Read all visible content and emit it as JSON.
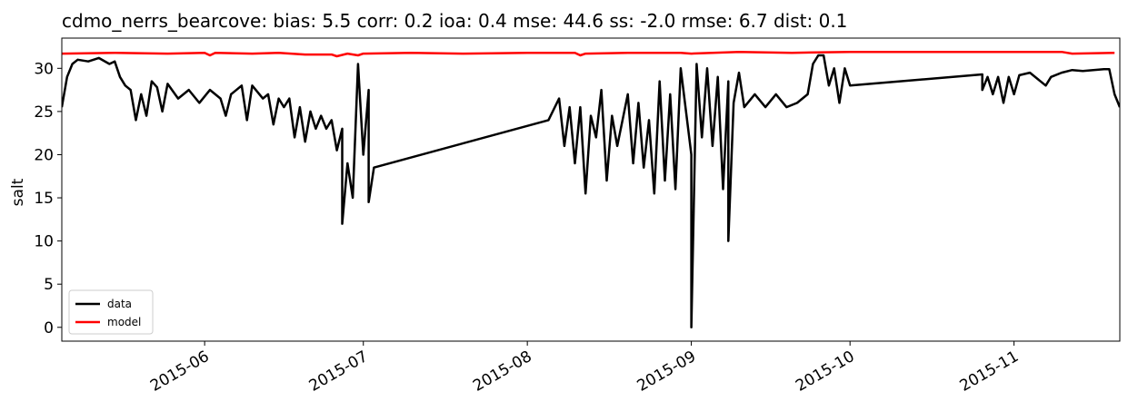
{
  "chart_data": {
    "type": "line",
    "title": "cdmo_nerrs_bearcove: bias: 5.5  corr: 0.2  ioa: 0.4  mse: 44.6  ss: -2.0  rmse: 6.7  dist: 0.1",
    "xlabel": "",
    "ylabel": "salt",
    "xlim": [
      "2015-05-05",
      "2015-11-21"
    ],
    "ylim": [
      -1.6,
      33.5
    ],
    "x_ticks": [
      "2015-06-01",
      "2015-07-01",
      "2015-08-01",
      "2015-09-01",
      "2015-10-01",
      "2015-11-01"
    ],
    "x_tick_labels": [
      "2015-06",
      "2015-07",
      "2015-08",
      "2015-09",
      "2015-10",
      "2015-11"
    ],
    "y_ticks": [
      0,
      5,
      10,
      15,
      20,
      25,
      30
    ],
    "y_tick_labels": [
      "0",
      "5",
      "10",
      "15",
      "20",
      "25",
      "30"
    ],
    "grid": false,
    "legend_position": "bottom-left",
    "legend": [
      "data",
      "model"
    ],
    "series": [
      {
        "name": "data",
        "color": "#000000",
        "points": [
          [
            "2015-05-05",
            25.5
          ],
          [
            "2015-05-06",
            29.0
          ],
          [
            "2015-05-07",
            30.5
          ],
          [
            "2015-05-08",
            31.0
          ],
          [
            "2015-05-10",
            30.8
          ],
          [
            "2015-05-12",
            31.2
          ],
          [
            "2015-05-14",
            30.5
          ],
          [
            "2015-05-15",
            30.8
          ],
          [
            "2015-05-16",
            29.0
          ],
          [
            "2015-05-17",
            28.0
          ],
          [
            "2015-05-18",
            27.5
          ],
          [
            "2015-05-19",
            24.0
          ],
          [
            "2015-05-20",
            27.0
          ],
          [
            "2015-05-21",
            24.5
          ],
          [
            "2015-05-22",
            28.5
          ],
          [
            "2015-05-23",
            27.8
          ],
          [
            "2015-05-24",
            25.0
          ],
          [
            "2015-05-25",
            28.2
          ],
          [
            "2015-05-27",
            26.5
          ],
          [
            "2015-05-29",
            27.5
          ],
          [
            "2015-05-31",
            26.0
          ],
          [
            "2015-06-02",
            27.5
          ],
          [
            "2015-06-04",
            26.5
          ],
          [
            "2015-06-05",
            24.5
          ],
          [
            "2015-06-06",
            27.0
          ],
          [
            "2015-06-08",
            28.0
          ],
          [
            "2015-06-09",
            24.0
          ],
          [
            "2015-06-10",
            28.0
          ],
          [
            "2015-06-12",
            26.5
          ],
          [
            "2015-06-13",
            27.0
          ],
          [
            "2015-06-14",
            23.5
          ],
          [
            "2015-06-15",
            26.5
          ],
          [
            "2015-06-16",
            25.5
          ],
          [
            "2015-06-17",
            26.5
          ],
          [
            "2015-06-18",
            22.0
          ],
          [
            "2015-06-19",
            25.5
          ],
          [
            "2015-06-20",
            21.5
          ],
          [
            "2015-06-21",
            25.0
          ],
          [
            "2015-06-22",
            23.0
          ],
          [
            "2015-06-23",
            24.5
          ],
          [
            "2015-06-24",
            23.0
          ],
          [
            "2015-06-25",
            24.0
          ],
          [
            "2015-06-26",
            20.5
          ],
          [
            "2015-06-27",
            23.0
          ],
          [
            "2015-06-27",
            12.0
          ],
          [
            "2015-06-28",
            19.0
          ],
          [
            "2015-06-29",
            15.0
          ],
          [
            "2015-06-30",
            30.5
          ],
          [
            "2015-07-01",
            20.0
          ],
          [
            "2015-07-02",
            27.5
          ],
          [
            "2015-07-02",
            14.5
          ],
          [
            "2015-07-03",
            18.5
          ],
          [
            "2015-08-05",
            24.0
          ],
          [
            "2015-08-07",
            26.5
          ],
          [
            "2015-08-08",
            21.0
          ],
          [
            "2015-08-09",
            25.5
          ],
          [
            "2015-08-10",
            19.0
          ],
          [
            "2015-08-11",
            25.5
          ],
          [
            "2015-08-12",
            15.5
          ],
          [
            "2015-08-13",
            24.5
          ],
          [
            "2015-08-14",
            22.0
          ],
          [
            "2015-08-15",
            27.5
          ],
          [
            "2015-08-16",
            17.0
          ],
          [
            "2015-08-17",
            24.5
          ],
          [
            "2015-08-18",
            21.0
          ],
          [
            "2015-08-20",
            27.0
          ],
          [
            "2015-08-21",
            19.0
          ],
          [
            "2015-08-22",
            26.0
          ],
          [
            "2015-08-23",
            18.5
          ],
          [
            "2015-08-24",
            24.0
          ],
          [
            "2015-08-25",
            15.5
          ],
          [
            "2015-08-26",
            28.5
          ],
          [
            "2015-08-27",
            17.0
          ],
          [
            "2015-08-28",
            27.0
          ],
          [
            "2015-08-29",
            16.0
          ],
          [
            "2015-08-30",
            30.0
          ],
          [
            "2015-09-01",
            20.0
          ],
          [
            "2015-09-01",
            0.0
          ],
          [
            "2015-09-02",
            30.5
          ],
          [
            "2015-09-03",
            22.0
          ],
          [
            "2015-09-04",
            30.0
          ],
          [
            "2015-09-05",
            21.0
          ],
          [
            "2015-09-06",
            29.0
          ],
          [
            "2015-09-07",
            16.0
          ],
          [
            "2015-09-08",
            28.5
          ],
          [
            "2015-09-08",
            10.0
          ],
          [
            "2015-09-09",
            26.0
          ],
          [
            "2015-09-10",
            29.5
          ],
          [
            "2015-09-11",
            25.5
          ],
          [
            "2015-09-13",
            27.0
          ],
          [
            "2015-09-15",
            25.5
          ],
          [
            "2015-09-17",
            27.0
          ],
          [
            "2015-09-19",
            25.5
          ],
          [
            "2015-09-21",
            26.0
          ],
          [
            "2015-09-23",
            27.0
          ],
          [
            "2015-09-24",
            30.5
          ],
          [
            "2015-09-25",
            31.5
          ],
          [
            "2015-09-26",
            31.5
          ],
          [
            "2015-09-27",
            28.0
          ],
          [
            "2015-09-28",
            30.0
          ],
          [
            "2015-09-29",
            26.0
          ],
          [
            "2015-09-30",
            30.0
          ],
          [
            "2015-10-01",
            28.0
          ],
          [
            "2015-10-26",
            29.3
          ],
          [
            "2015-10-26",
            27.5
          ],
          [
            "2015-10-27",
            29.0
          ],
          [
            "2015-10-28",
            27.0
          ],
          [
            "2015-10-29",
            29.0
          ],
          [
            "2015-10-30",
            26.0
          ],
          [
            "2015-10-31",
            29.0
          ],
          [
            "2015-11-01",
            27.0
          ],
          [
            "2015-11-02",
            29.2
          ],
          [
            "2015-11-04",
            29.5
          ],
          [
            "2015-11-07",
            28.0
          ],
          [
            "2015-11-08",
            29.0
          ],
          [
            "2015-11-10",
            29.5
          ],
          [
            "2015-11-12",
            29.8
          ],
          [
            "2015-11-14",
            29.7
          ],
          [
            "2015-11-16",
            29.8
          ],
          [
            "2015-11-18",
            29.9
          ],
          [
            "2015-11-19",
            29.9
          ],
          [
            "2015-11-20",
            27.0
          ],
          [
            "2015-11-21",
            25.5
          ]
        ]
      },
      {
        "name": "model",
        "color": "#ff0000",
        "points": [
          [
            "2015-05-05",
            31.7
          ],
          [
            "2015-05-15",
            31.8
          ],
          [
            "2015-05-25",
            31.7
          ],
          [
            "2015-06-01",
            31.8
          ],
          [
            "2015-06-02",
            31.5
          ],
          [
            "2015-06-03",
            31.8
          ],
          [
            "2015-06-10",
            31.7
          ],
          [
            "2015-06-15",
            31.8
          ],
          [
            "2015-06-20",
            31.6
          ],
          [
            "2015-06-25",
            31.6
          ],
          [
            "2015-06-26",
            31.4
          ],
          [
            "2015-06-28",
            31.7
          ],
          [
            "2015-06-30",
            31.5
          ],
          [
            "2015-07-01",
            31.7
          ],
          [
            "2015-07-10",
            31.8
          ],
          [
            "2015-07-20",
            31.7
          ],
          [
            "2015-08-01",
            31.8
          ],
          [
            "2015-08-10",
            31.8
          ],
          [
            "2015-08-11",
            31.5
          ],
          [
            "2015-08-12",
            31.7
          ],
          [
            "2015-08-20",
            31.8
          ],
          [
            "2015-08-30",
            31.8
          ],
          [
            "2015-09-01",
            31.7
          ],
          [
            "2015-09-10",
            31.9
          ],
          [
            "2015-09-20",
            31.8
          ],
          [
            "2015-10-01",
            31.9
          ],
          [
            "2015-10-15",
            31.9
          ],
          [
            "2015-11-01",
            31.9
          ],
          [
            "2015-11-10",
            31.9
          ],
          [
            "2015-11-12",
            31.7
          ],
          [
            "2015-11-20",
            31.8
          ]
        ]
      }
    ]
  }
}
